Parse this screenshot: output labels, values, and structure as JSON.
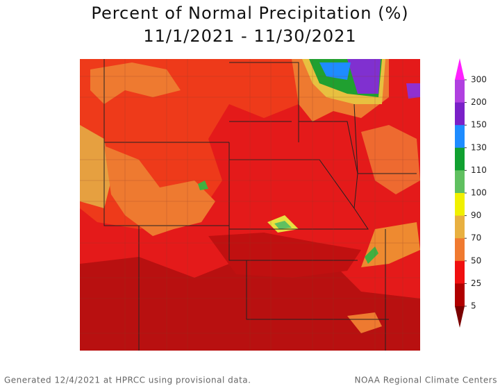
{
  "header": {
    "title": "Percent of Normal Precipitation (%)",
    "period": "11/1/2021 - 11/30/2021"
  },
  "legend": {
    "labels": [
      300,
      200,
      150,
      130,
      110,
      100,
      90,
      70,
      50,
      25,
      5
    ],
    "colors": [
      "#ff20ff",
      "#b040e0",
      "#7a20c8",
      "#1e8cff",
      "#10a030",
      "#60c060",
      "#f0f000",
      "#e8b040",
      "#f07a30",
      "#f01010",
      "#b00000",
      "#7a0000"
    ]
  },
  "footer": {
    "generated": "Generated 12/4/2021 at HPRCC using provisional data.",
    "source": "NOAA Regional Climate Centers"
  }
}
